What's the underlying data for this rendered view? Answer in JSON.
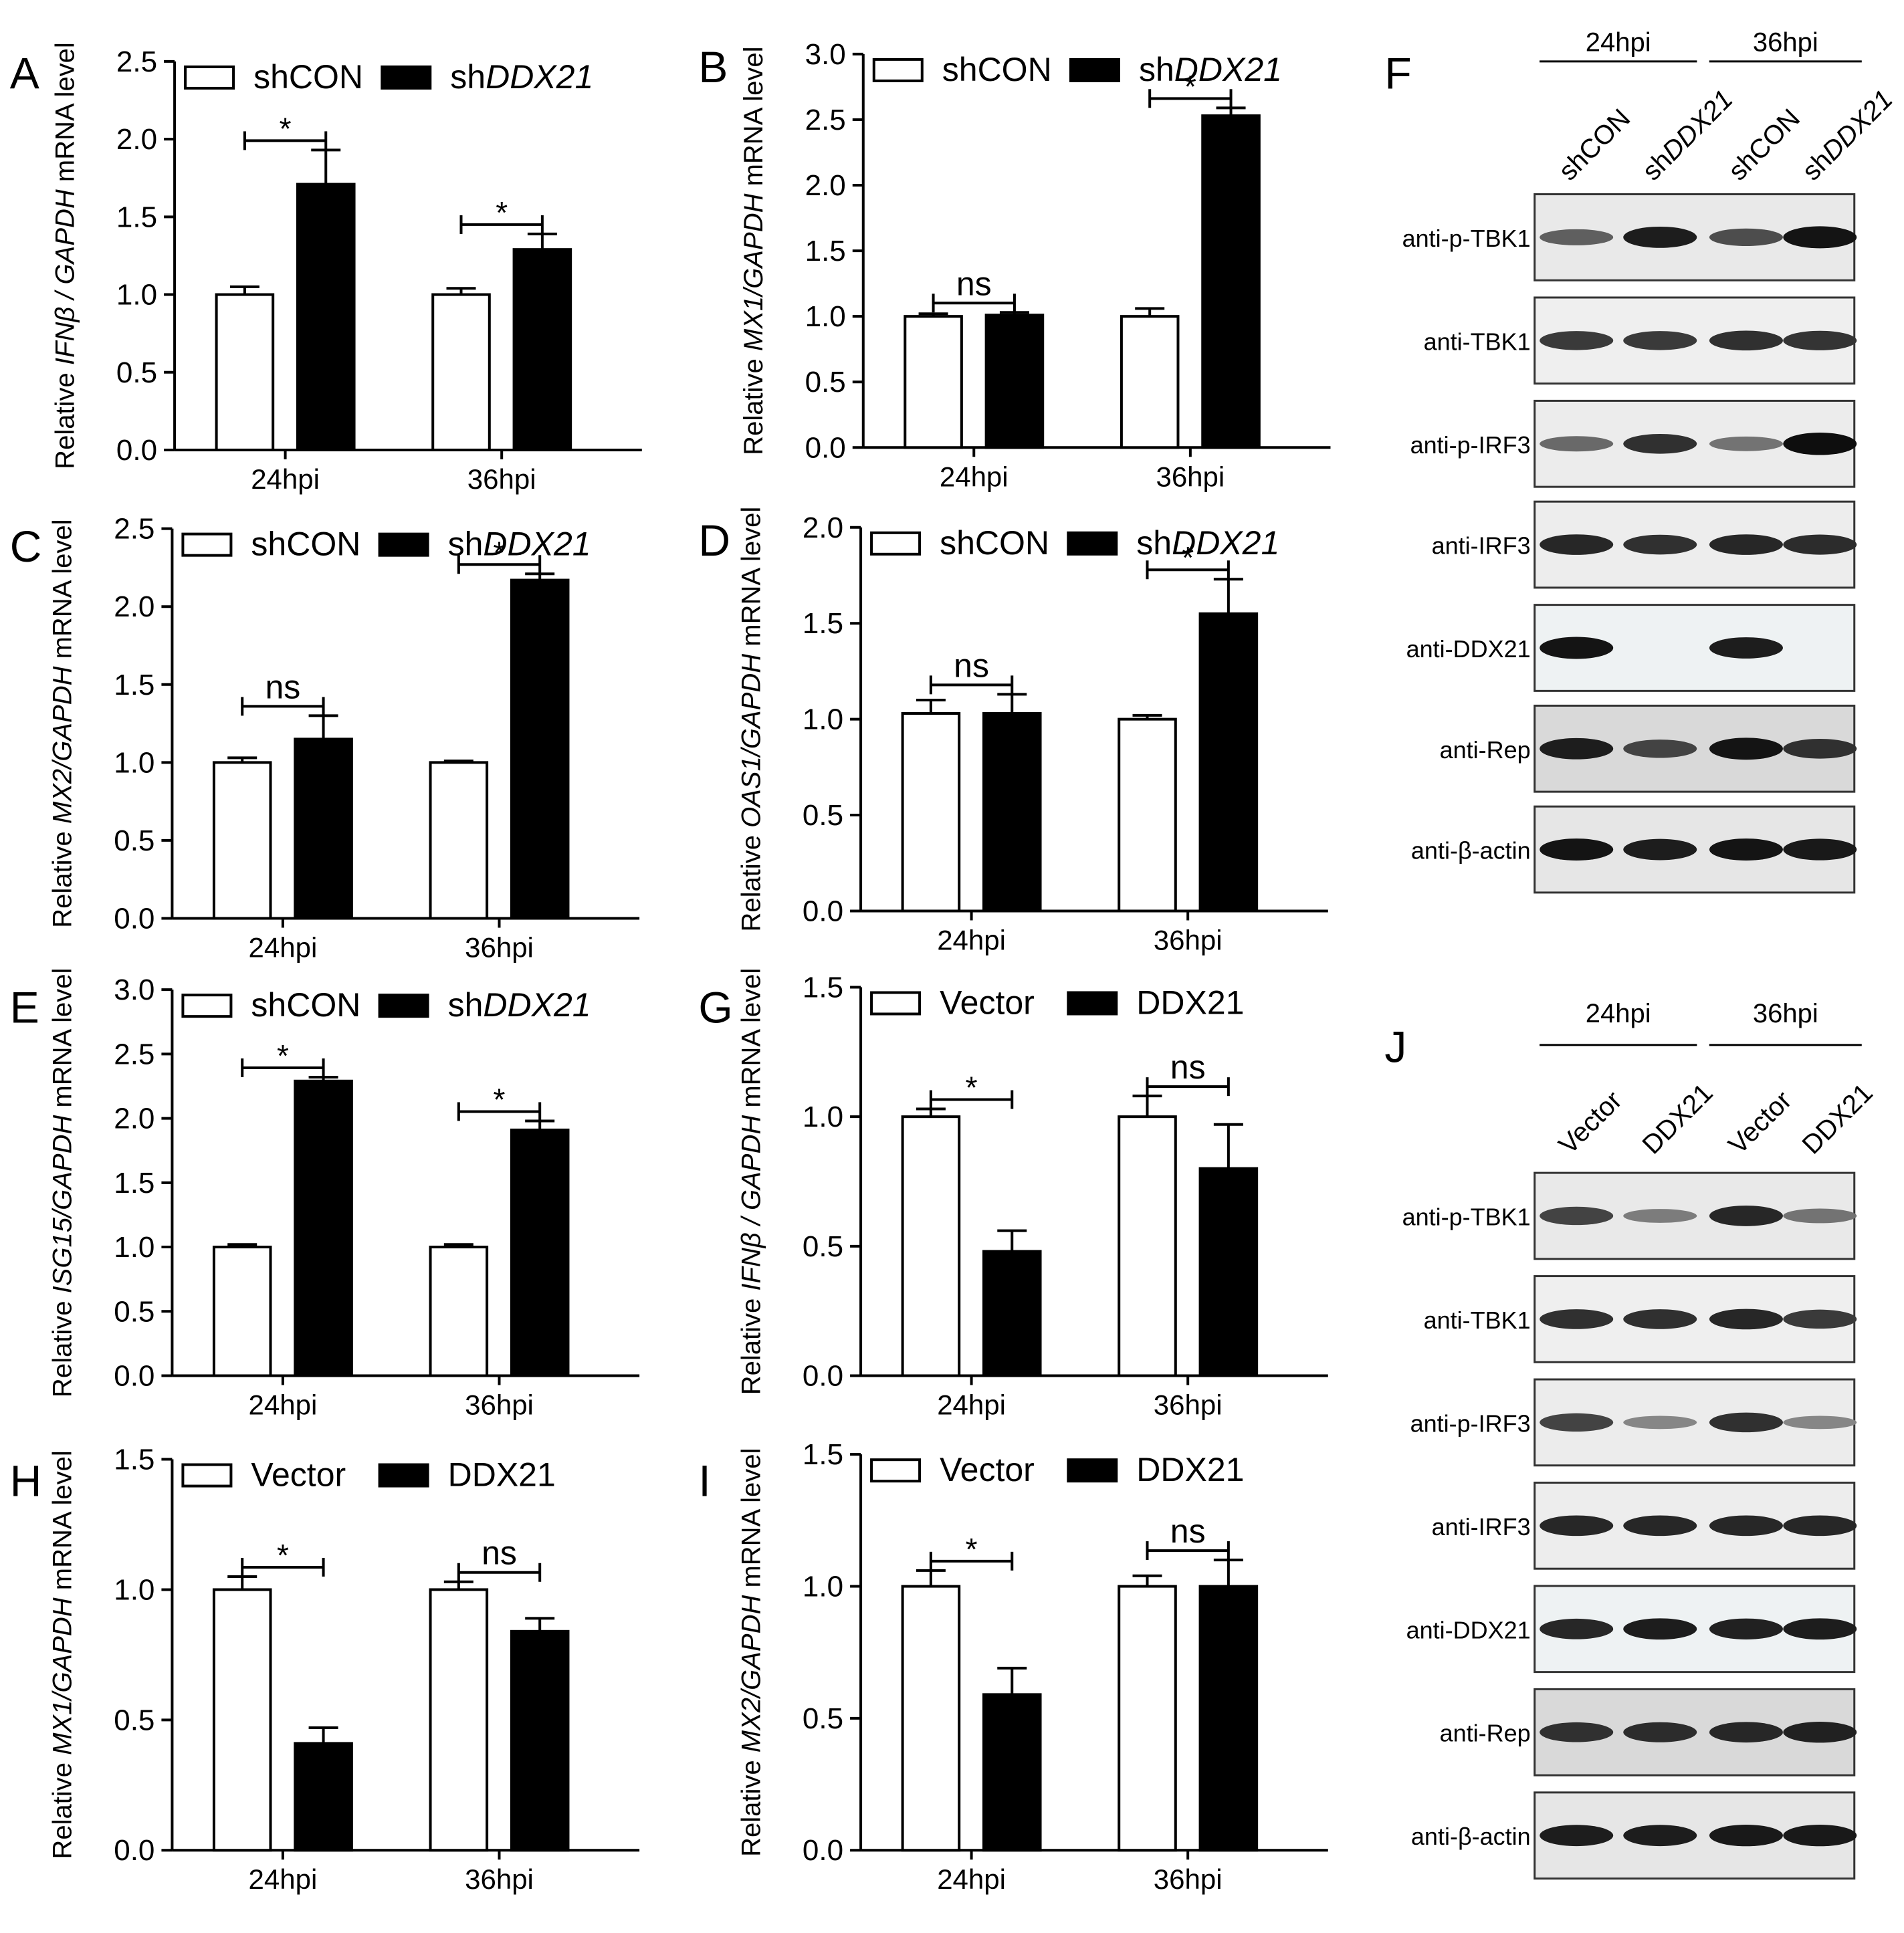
{
  "colors": {
    "open": "#ffffff",
    "filled": "#000000",
    "axis": "#000000"
  },
  "chart_data": [
    {
      "id": "A",
      "type": "bar",
      "title": "",
      "xlabel": "",
      "ylabel": {
        "pre": "Relative ",
        "gene": "IFNβ / GAPDH",
        "post": " mRNA level"
      },
      "categories": [
        "24hpi",
        "36hpi"
      ],
      "series": [
        {
          "name": "shCON",
          "prefix": "shCON",
          "italic": "",
          "values": [
            1.0,
            1.0
          ],
          "errors": [
            0.05,
            0.04
          ]
        },
        {
          "name": "shDDX21",
          "prefix": "sh",
          "italic": "DDX21",
          "values": [
            1.71,
            1.29
          ],
          "errors": [
            0.22,
            0.1
          ]
        }
      ],
      "ylim": [
        0,
        2.5
      ],
      "ticks": [
        "0.0",
        "0.5",
        "1.0",
        "1.5",
        "2.0",
        "2.5"
      ],
      "sig": [
        "*",
        "*"
      ]
    },
    {
      "id": "B",
      "type": "bar",
      "title": "",
      "xlabel": "",
      "ylabel": {
        "pre": "Relative ",
        "gene": "MX1/GAPDH",
        "post": " mRNA level"
      },
      "categories": [
        "24hpi",
        "36hpi"
      ],
      "series": [
        {
          "name": "shCON",
          "prefix": "shCON",
          "italic": "",
          "values": [
            1.0,
            1.0
          ],
          "errors": [
            0.02,
            0.06
          ]
        },
        {
          "name": "shDDX21",
          "prefix": "sh",
          "italic": "DDX21",
          "values": [
            1.01,
            2.53
          ],
          "errors": [
            0.02,
            0.06
          ]
        }
      ],
      "ylim": [
        0,
        3.0
      ],
      "ticks": [
        "0.0",
        "0.5",
        "1.0",
        "1.5",
        "2.0",
        "2.5",
        "3.0"
      ],
      "sig": [
        "ns",
        "*"
      ]
    },
    {
      "id": "C",
      "type": "bar",
      "title": "",
      "xlabel": "",
      "ylabel": {
        "pre": "Relative ",
        "gene": "MX2/GAPDH",
        "post": " mRNA level"
      },
      "categories": [
        "24hpi",
        "36hpi"
      ],
      "series": [
        {
          "name": "shCON",
          "prefix": "shCON",
          "italic": "",
          "values": [
            1.0,
            1.0
          ],
          "errors": [
            0.03,
            0.01
          ]
        },
        {
          "name": "shDDX21",
          "prefix": "sh",
          "italic": "DDX21",
          "values": [
            1.15,
            2.17
          ],
          "errors": [
            0.15,
            0.04
          ]
        }
      ],
      "ylim": [
        0,
        2.5
      ],
      "ticks": [
        "0.0",
        "0.5",
        "1.0",
        "1.5",
        "2.0",
        "2.5"
      ],
      "sig": [
        "ns",
        "*"
      ]
    },
    {
      "id": "D",
      "type": "bar",
      "title": "",
      "xlabel": "",
      "ylabel": {
        "pre": "Relative ",
        "gene": "OAS1/GAPDH",
        "post": " mRNA level"
      },
      "categories": [
        "24hpi",
        "36hpi"
      ],
      "series": [
        {
          "name": "shCON",
          "prefix": "shCON",
          "italic": "",
          "values": [
            1.03,
            1.0
          ],
          "errors": [
            0.07,
            0.02
          ]
        },
        {
          "name": "shDDX21",
          "prefix": "sh",
          "italic": "DDX21",
          "values": [
            1.03,
            1.55
          ],
          "errors": [
            0.1,
            0.18
          ]
        }
      ],
      "ylim": [
        0,
        2.0
      ],
      "ticks": [
        "0.0",
        "0.5",
        "1.0",
        "1.5",
        "2.0"
      ],
      "sig": [
        "ns",
        "*"
      ]
    },
    {
      "id": "E",
      "type": "bar",
      "title": "",
      "xlabel": "",
      "ylabel": {
        "pre": "Relative ",
        "gene": "ISG15/GAPDH",
        "post": " mRNA level"
      },
      "categories": [
        "24hpi",
        "36hpi"
      ],
      "series": [
        {
          "name": "shCON",
          "prefix": "shCON",
          "italic": "",
          "values": [
            1.0,
            1.0
          ],
          "errors": [
            0.02,
            0.02
          ]
        },
        {
          "name": "shDDX21",
          "prefix": "sh",
          "italic": "DDX21",
          "values": [
            2.29,
            1.91
          ],
          "errors": [
            0.03,
            0.07
          ]
        }
      ],
      "ylim": [
        0,
        3.0
      ],
      "ticks": [
        "0.0",
        "0.5",
        "1.0",
        "1.5",
        "2.0",
        "2.5",
        "3.0"
      ],
      "sig": [
        "*",
        "*"
      ]
    },
    {
      "id": "G",
      "type": "bar",
      "title": "",
      "xlabel": "",
      "ylabel": {
        "pre": "Relative ",
        "gene": "IFNβ / GAPDH",
        "post": " mRNA level"
      },
      "categories": [
        "24hpi",
        "36hpi"
      ],
      "series": [
        {
          "name": "Vector",
          "prefix": "Vector",
          "italic": "",
          "values": [
            1.0,
            1.0
          ],
          "errors": [
            0.03,
            0.08
          ]
        },
        {
          "name": "DDX21",
          "prefix": "DDX21",
          "italic": "",
          "values": [
            0.48,
            0.8
          ],
          "errors": [
            0.08,
            0.17
          ]
        }
      ],
      "ylim": [
        0,
        1.5
      ],
      "ticks": [
        "0.0",
        "0.5",
        "1.0",
        "1.5"
      ],
      "sig": [
        "*",
        "ns"
      ]
    },
    {
      "id": "H",
      "type": "bar",
      "title": "",
      "xlabel": "",
      "ylabel": {
        "pre": "Relative ",
        "gene": "MX1/GAPDH",
        "post": " mRNA level"
      },
      "categories": [
        "24hpi",
        "36hpi"
      ],
      "series": [
        {
          "name": "Vector",
          "prefix": "Vector",
          "italic": "",
          "values": [
            1.0,
            1.0
          ],
          "errors": [
            0.05,
            0.03
          ]
        },
        {
          "name": "DDX21",
          "prefix": "DDX21",
          "italic": "",
          "values": [
            0.41,
            0.84
          ],
          "errors": [
            0.06,
            0.05
          ]
        }
      ],
      "ylim": [
        0,
        1.5
      ],
      "ticks": [
        "0.0",
        "0.5",
        "1.0",
        "1.5"
      ],
      "sig": [
        "*",
        "ns"
      ]
    },
    {
      "id": "I",
      "type": "bar",
      "title": "",
      "xlabel": "",
      "ylabel": {
        "pre": "Relative ",
        "gene": "MX2/GAPDH",
        "post": " mRNA level"
      },
      "categories": [
        "24hpi",
        "36hpi"
      ],
      "series": [
        {
          "name": "Vector",
          "prefix": "Vector",
          "italic": "",
          "values": [
            1.0,
            1.0
          ],
          "errors": [
            0.06,
            0.04
          ]
        },
        {
          "name": "DDX21",
          "prefix": "DDX21",
          "italic": "",
          "values": [
            0.59,
            1.0
          ],
          "errors": [
            0.1,
            0.1
          ]
        }
      ],
      "ylim": [
        0,
        1.5
      ],
      "ticks": [
        "0.0",
        "0.5",
        "1.0",
        "1.5"
      ],
      "sig": [
        "*",
        "ns"
      ]
    }
  ],
  "blots": [
    {
      "id": "F",
      "letter": "F",
      "timepoints": [
        "24hpi",
        "36hpi"
      ],
      "lanes": [
        {
          "prefix": "sh",
          "italic": "CON",
          "plain": "shCON"
        },
        {
          "prefix": "sh",
          "italic": "DDX21",
          "plain": ""
        },
        {
          "prefix": "sh",
          "italic": "CON",
          "plain": "shCON"
        },
        {
          "prefix": "sh",
          "italic": "DDX21",
          "plain": ""
        }
      ],
      "rows": [
        {
          "label": "anti-p-TBK1",
          "intensities": [
            0.55,
            0.9,
            0.65,
            0.95
          ]
        },
        {
          "label": "anti-TBK1",
          "intensities": [
            0.75,
            0.75,
            0.8,
            0.78
          ]
        },
        {
          "label": "anti-p-IRF3",
          "intensities": [
            0.5,
            0.8,
            0.45,
            0.98
          ]
        },
        {
          "label": "anti-IRF3",
          "intensities": [
            0.85,
            0.8,
            0.85,
            0.82
          ]
        },
        {
          "label": "anti-DDX21",
          "intensities": [
            0.95,
            0.0,
            0.9,
            0.0
          ]
        },
        {
          "label": "anti-Rep",
          "intensities": [
            0.9,
            0.7,
            0.95,
            0.8
          ]
        },
        {
          "label": "anti-β-actin",
          "intensities": [
            0.95,
            0.9,
            0.95,
            0.92
          ]
        }
      ]
    },
    {
      "id": "J",
      "letter": "J",
      "timepoints": [
        "24hpi",
        "36hpi"
      ],
      "lanes": [
        {
          "prefix": "",
          "italic": "",
          "plain": "Vector"
        },
        {
          "prefix": "",
          "italic": "",
          "plain": "DDX21"
        },
        {
          "prefix": "",
          "italic": "",
          "plain": "Vector"
        },
        {
          "prefix": "",
          "italic": "",
          "plain": "DDX21"
        }
      ],
      "rows": [
        {
          "label": "anti-p-TBK1",
          "intensities": [
            0.7,
            0.4,
            0.85,
            0.45
          ]
        },
        {
          "label": "anti-TBK1",
          "intensities": [
            0.8,
            0.8,
            0.85,
            0.75
          ]
        },
        {
          "label": "anti-p-IRF3",
          "intensities": [
            0.7,
            0.35,
            0.8,
            0.35
          ]
        },
        {
          "label": "anti-IRF3",
          "intensities": [
            0.85,
            0.85,
            0.85,
            0.85
          ]
        },
        {
          "label": "anti-DDX21",
          "intensities": [
            0.85,
            0.9,
            0.88,
            0.9
          ]
        },
        {
          "label": "anti-Rep",
          "intensities": [
            0.8,
            0.82,
            0.85,
            0.88
          ]
        },
        {
          "label": "anti-β-actin",
          "intensities": [
            0.9,
            0.9,
            0.92,
            0.92
          ]
        }
      ]
    }
  ]
}
